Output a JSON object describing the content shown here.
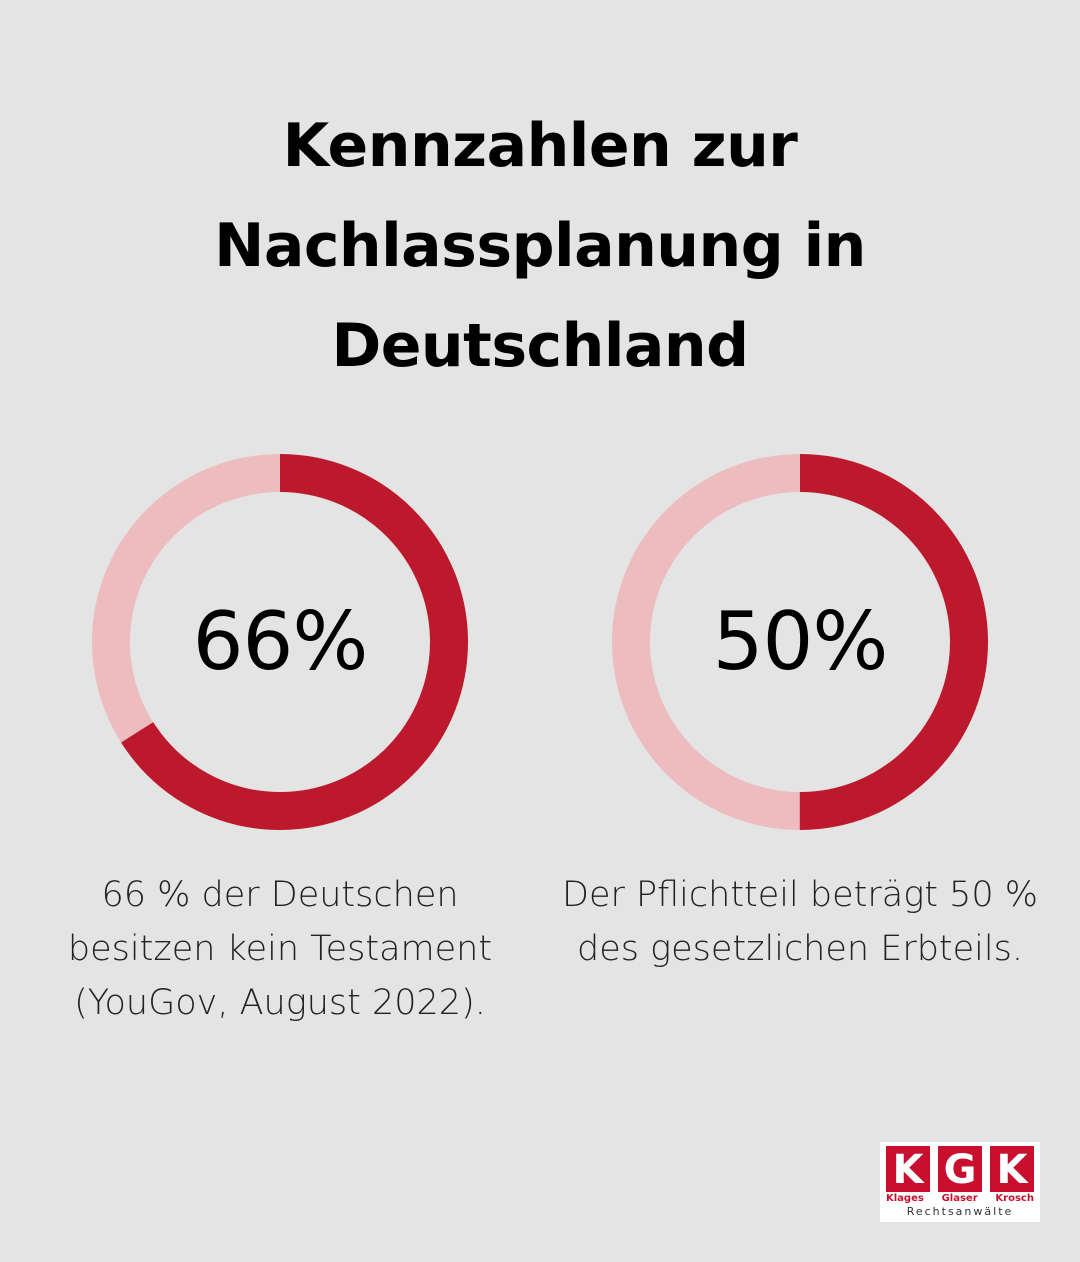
{
  "title_lines": [
    "Kennzahlen zur",
    "Nachlassplanung in",
    "Deutschland"
  ],
  "colors": {
    "background": "#e4e4e4",
    "ring_filled": "#bc1a2c",
    "ring_track": "#ecbcbf",
    "brand_red": "#c8102e"
  },
  "chart_data": [
    {
      "type": "pie",
      "style": "donut",
      "value_label": "66%",
      "values": [
        66,
        34
      ],
      "caption_lines": [
        "66 % der Deutschen",
        "besitzen kein Testament",
        "(YouGov, August 2022)."
      ]
    },
    {
      "type": "pie",
      "style": "donut",
      "value_label": "50%",
      "values": [
        50,
        50
      ],
      "caption_lines": [
        "Der Pflichtteil beträgt 50 %",
        "des gesetzlichen Erbteils."
      ]
    }
  ],
  "logo": {
    "letters": [
      "K",
      "G",
      "K"
    ],
    "names": [
      "Klages",
      "Glaser",
      "Krosch"
    ],
    "subtitle": "Rechtsanwälte"
  }
}
